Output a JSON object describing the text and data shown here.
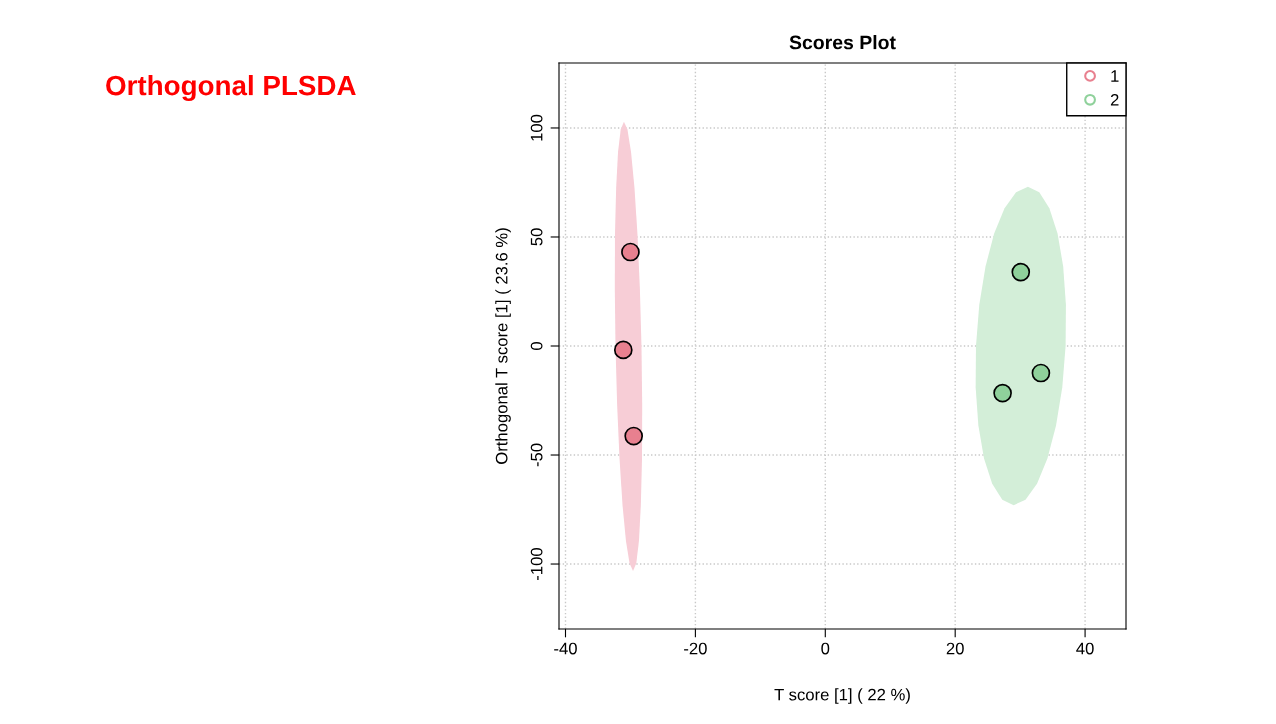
{
  "chart_data": {
    "type": "scatter",
    "title": "Scores Plot",
    "xlabel": "T score [1] ( 22 %)",
    "ylabel": "Orthogonal T score [1] ( 23.6 %)",
    "annotations": [
      "Orthogonal PLSDA"
    ],
    "xlim": [
      -41,
      46.3
    ],
    "ylim": [
      -129.8,
      129.8
    ],
    "xticks": [
      -40,
      -20,
      0,
      20,
      40
    ],
    "yticks": [
      -100,
      -50,
      0,
      50,
      100
    ],
    "grid": true,
    "legend": "top right",
    "marker": "circle",
    "series": [
      {
        "type": "area",
        "marker": "none",
        "color": "#f7cdd6",
        "x": [
          -28.3,
          -28.55,
          -28.92,
          -29.38,
          -29.91,
          -30.46,
          -31.0,
          -31.5,
          -31.91,
          -32.2,
          -32.38,
          -32.41,
          -32.3,
          -32.05,
          -31.68,
          -31.22,
          -30.69,
          -30.14,
          -29.6,
          -29.1,
          -28.69,
          -28.4,
          -28.22,
          -28.19
        ],
        "values": [
          -0.2,
          26.5,
          51.3,
          72.6,
          89.0,
          99.3,
          102.8,
          99.3,
          89.0,
          72.6,
          51.3,
          26.5,
          -0.2,
          -26.9,
          -51.7,
          -73.0,
          -89.4,
          -99.7,
          -103.2,
          -99.7,
          -89.4,
          -73.0,
          -51.7,
          -26.9
        ]
      },
      {
        "type": "area",
        "marker": "none",
        "color": "#d3eed8",
        "x": [
          37.0,
          37.05,
          36.63,
          35.76,
          34.5,
          32.95,
          31.2,
          29.37,
          27.6,
          26.0,
          24.67,
          23.71,
          23.2,
          23.15,
          23.57,
          24.44,
          25.7,
          27.25,
          29.0,
          30.83,
          32.6,
          34.2,
          35.53,
          36.49
        ],
        "values": [
          0,
          18.9,
          36.5,
          51.6,
          63.2,
          70.5,
          73,
          70.5,
          63.2,
          51.6,
          36.5,
          18.9,
          0,
          -18.9,
          -36.5,
          -51.6,
          -63.2,
          -70.5,
          -73,
          -70.5,
          -63.2,
          -51.6,
          -36.5,
          -18.9
        ]
      },
      {
        "name": "1",
        "color": "#e8808f",
        "x": [
          -30.0,
          -31.1,
          -29.5
        ],
        "values": [
          43.1,
          -1.8,
          -41.3
        ]
      },
      {
        "name": "2",
        "color": "#8fd19b",
        "x": [
          30.1,
          33.2,
          27.3
        ],
        "values": [
          33.9,
          -12.4,
          -21.6
        ]
      }
    ]
  }
}
